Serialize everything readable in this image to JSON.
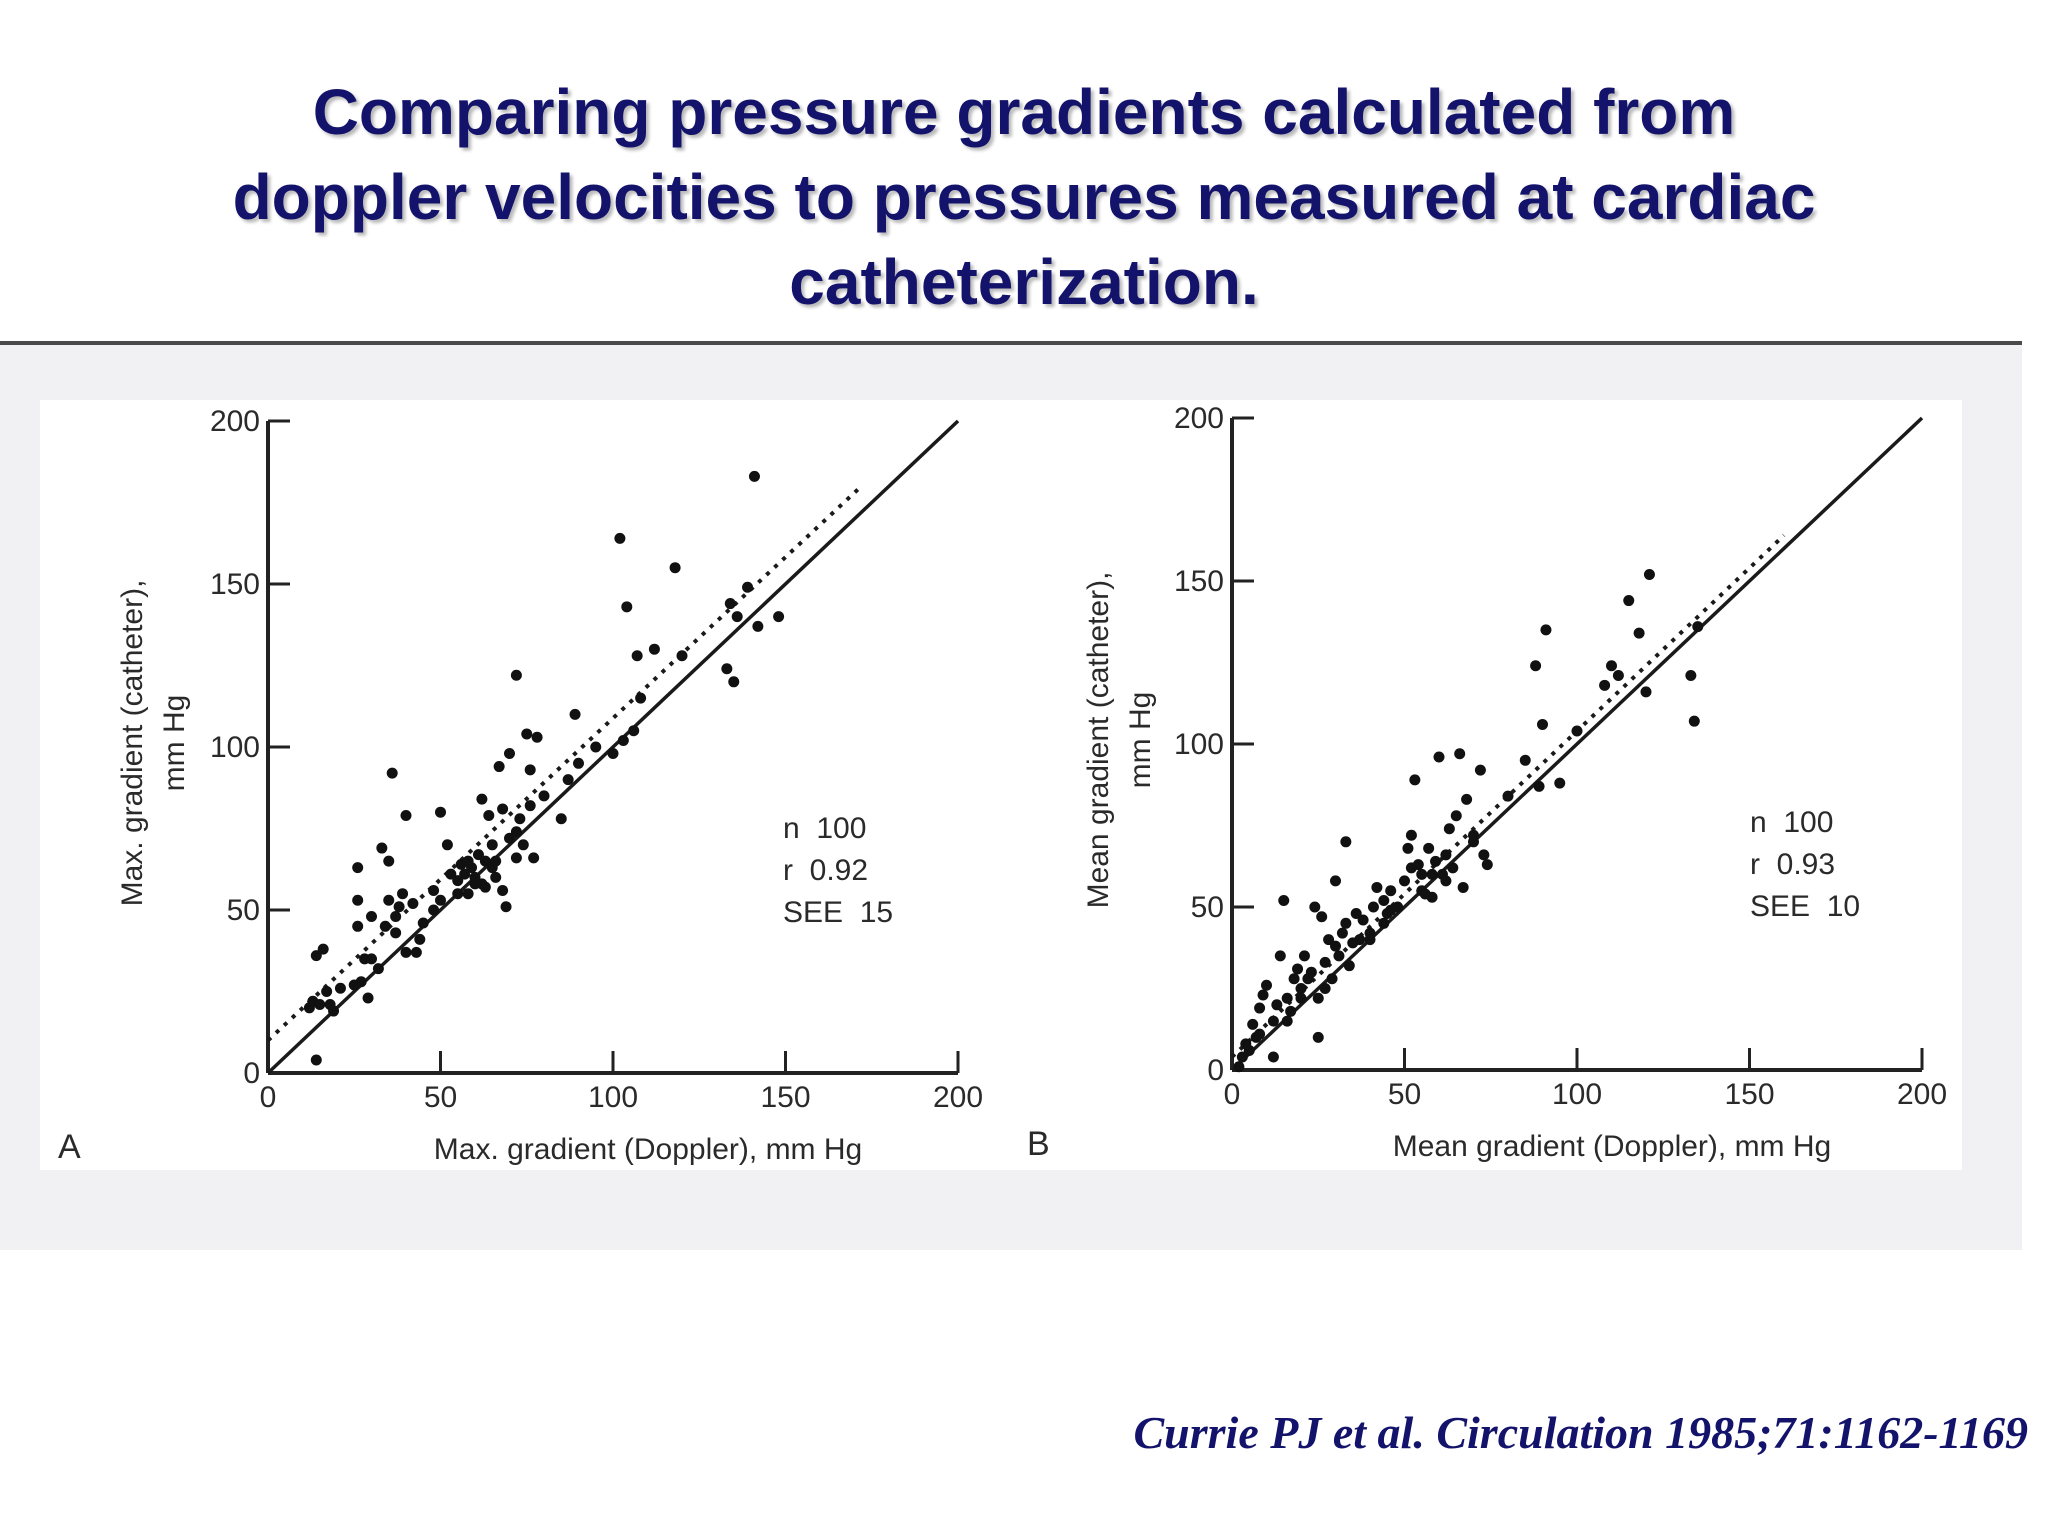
{
  "slide": {
    "title_lines": [
      "Comparing pressure gradients calculated from",
      "doppler velocities to pressures measured at cardiac",
      "catheterization."
    ],
    "citation": "Currie PJ et al. Circulation 1985;71:1162-1169",
    "title_color": "#13136b"
  },
  "chart_data": [
    {
      "type": "scatter",
      "panel_label": "A",
      "xlabel": "Max. gradient (Doppler), mm Hg",
      "ylabel_lines": [
        "Max. gradient (catheter),",
        "mm Hg"
      ],
      "xlim": [
        0,
        200
      ],
      "ylim": [
        0,
        200
      ],
      "xticks": [
        0,
        50,
        100,
        150,
        200
      ],
      "yticks": [
        0,
        50,
        100,
        150,
        200
      ],
      "stats": [
        "n  100",
        "r  0.92",
        "SEE  15"
      ],
      "identity_line": [
        [
          0,
          0
        ],
        [
          200,
          200
        ]
      ],
      "regression_line": [
        [
          0,
          10
        ],
        [
          172,
          180
        ]
      ],
      "points": [
        [
          12,
          20
        ],
        [
          13,
          22
        ],
        [
          14,
          36
        ],
        [
          15,
          21
        ],
        [
          16,
          38
        ],
        [
          17,
          25
        ],
        [
          18,
          21
        ],
        [
          14,
          4
        ],
        [
          25,
          27
        ],
        [
          26,
          53
        ],
        [
          26,
          63
        ],
        [
          26,
          45
        ],
        [
          27,
          28
        ],
        [
          28,
          35
        ],
        [
          29,
          23
        ],
        [
          30,
          48
        ],
        [
          32,
          32
        ],
        [
          33,
          69
        ],
        [
          34,
          45
        ],
        [
          35,
          65
        ],
        [
          35,
          53
        ],
        [
          36,
          92
        ],
        [
          37,
          48
        ],
        [
          38,
          51
        ],
        [
          39,
          55
        ],
        [
          40,
          37
        ],
        [
          40,
          79
        ],
        [
          42,
          52
        ],
        [
          43,
          37
        ],
        [
          48,
          56
        ],
        [
          48,
          50
        ],
        [
          50,
          80
        ],
        [
          52,
          70
        ],
        [
          53,
          61
        ],
        [
          55,
          55
        ],
        [
          56,
          64
        ],
        [
          57,
          61
        ],
        [
          58,
          65
        ],
        [
          59,
          63
        ],
        [
          60,
          58
        ],
        [
          61,
          67
        ],
        [
          62,
          58
        ],
        [
          62,
          84
        ],
        [
          63,
          57
        ],
        [
          64,
          79
        ],
        [
          65,
          63
        ],
        [
          65,
          70
        ],
        [
          66,
          65
        ],
        [
          67,
          94
        ],
        [
          68,
          56
        ],
        [
          68,
          81
        ],
        [
          69,
          51
        ],
        [
          70,
          72
        ],
        [
          70,
          98
        ],
        [
          72,
          74
        ],
        [
          72,
          122
        ],
        [
          73,
          78
        ],
        [
          74,
          70
        ],
        [
          75,
          104
        ],
        [
          76,
          93
        ],
        [
          76,
          82
        ],
        [
          77,
          66
        ],
        [
          78,
          103
        ],
        [
          85,
          78
        ],
        [
          87,
          90
        ],
        [
          89,
          110
        ],
        [
          100,
          98
        ],
        [
          102,
          164
        ],
        [
          103,
          102
        ],
        [
          104,
          143
        ],
        [
          106,
          105
        ],
        [
          107,
          128
        ],
        [
          108,
          115
        ],
        [
          112,
          130
        ],
        [
          118,
          155
        ],
        [
          133,
          124
        ],
        [
          134,
          144
        ],
        [
          135,
          120
        ],
        [
          136,
          140
        ],
        [
          139,
          149
        ],
        [
          141,
          183
        ],
        [
          142,
          137
        ],
        [
          148,
          140
        ],
        [
          60,
          60
        ],
        [
          45,
          46
        ],
        [
          55,
          59
        ],
        [
          80,
          85
        ],
        [
          95,
          100
        ],
        [
          66,
          60
        ],
        [
          58,
          55
        ],
        [
          21,
          26
        ],
        [
          19,
          19
        ],
        [
          30,
          35
        ],
        [
          37,
          43
        ],
        [
          44,
          41
        ],
        [
          50,
          53
        ],
        [
          63,
          65
        ],
        [
          72,
          66
        ],
        [
          90,
          95
        ],
        [
          120,
          128
        ]
      ]
    },
    {
      "type": "scatter",
      "panel_label": "B",
      "xlabel": "Mean gradient (Doppler), mm Hg",
      "ylabel_lines": [
        "Mean gradient (catheter),",
        "mm Hg"
      ],
      "xlim": [
        0,
        200
      ],
      "ylim": [
        0,
        200
      ],
      "xticks": [
        0,
        50,
        100,
        150,
        200
      ],
      "yticks": [
        0,
        50,
        100,
        150,
        200
      ],
      "stats": [
        "n  100",
        "r  0.93",
        "SEE  10"
      ],
      "identity_line": [
        [
          0,
          0
        ],
        [
          200,
          200
        ]
      ],
      "regression_line": [
        [
          0,
          4
        ],
        [
          160,
          164
        ]
      ],
      "points": [
        [
          2,
          1
        ],
        [
          3,
          4
        ],
        [
          4,
          8
        ],
        [
          5,
          6
        ],
        [
          6,
          14
        ],
        [
          7,
          10
        ],
        [
          8,
          11
        ],
        [
          8,
          19
        ],
        [
          9,
          23
        ],
        [
          10,
          26
        ],
        [
          12,
          15
        ],
        [
          12,
          4
        ],
        [
          13,
          20
        ],
        [
          14,
          35
        ],
        [
          15,
          52
        ],
        [
          16,
          22
        ],
        [
          17,
          18
        ],
        [
          18,
          28
        ],
        [
          19,
          31
        ],
        [
          20,
          25
        ],
        [
          21,
          35
        ],
        [
          22,
          28
        ],
        [
          23,
          30
        ],
        [
          24,
          50
        ],
        [
          25,
          10
        ],
        [
          25,
          22
        ],
        [
          26,
          47
        ],
        [
          27,
          33
        ],
        [
          28,
          40
        ],
        [
          29,
          28
        ],
        [
          30,
          38
        ],
        [
          30,
          58
        ],
        [
          31,
          35
        ],
        [
          32,
          42
        ],
        [
          33,
          45
        ],
        [
          33,
          70
        ],
        [
          34,
          32
        ],
        [
          35,
          39
        ],
        [
          36,
          48
        ],
        [
          38,
          46
        ],
        [
          40,
          42
        ],
        [
          41,
          50
        ],
        [
          42,
          56
        ],
        [
          44,
          52
        ],
        [
          45,
          48
        ],
        [
          46,
          55
        ],
        [
          48,
          50
        ],
        [
          50,
          58
        ],
        [
          51,
          68
        ],
        [
          52,
          72
        ],
        [
          52,
          62
        ],
        [
          53,
          89
        ],
        [
          54,
          63
        ],
        [
          55,
          55
        ],
        [
          56,
          54
        ],
        [
          57,
          68
        ],
        [
          58,
          53
        ],
        [
          59,
          64
        ],
        [
          60,
          96
        ],
        [
          61,
          60
        ],
        [
          62,
          66
        ],
        [
          63,
          74
        ],
        [
          64,
          62
        ],
        [
          65,
          78
        ],
        [
          66,
          97
        ],
        [
          67,
          56
        ],
        [
          68,
          83
        ],
        [
          70,
          70
        ],
        [
          72,
          92
        ],
        [
          73,
          66
        ],
        [
          74,
          63
        ],
        [
          85,
          95
        ],
        [
          88,
          124
        ],
        [
          89,
          87
        ],
        [
          90,
          106
        ],
        [
          91,
          135
        ],
        [
          95,
          88
        ],
        [
          108,
          118
        ],
        [
          110,
          124
        ],
        [
          112,
          121
        ],
        [
          115,
          144
        ],
        [
          118,
          134
        ],
        [
          120,
          116
        ],
        [
          121,
          152
        ],
        [
          133,
          121
        ],
        [
          134,
          107
        ],
        [
          135,
          136
        ],
        [
          20,
          22
        ],
        [
          40,
          40
        ],
        [
          46,
          49
        ],
        [
          58,
          60
        ],
        [
          62,
          58
        ],
        [
          37,
          40
        ],
        [
          27,
          25
        ],
        [
          16,
          15
        ],
        [
          55,
          60
        ],
        [
          44,
          45
        ],
        [
          70,
          72
        ],
        [
          100,
          104
        ],
        [
          80,
          84
        ]
      ]
    }
  ]
}
